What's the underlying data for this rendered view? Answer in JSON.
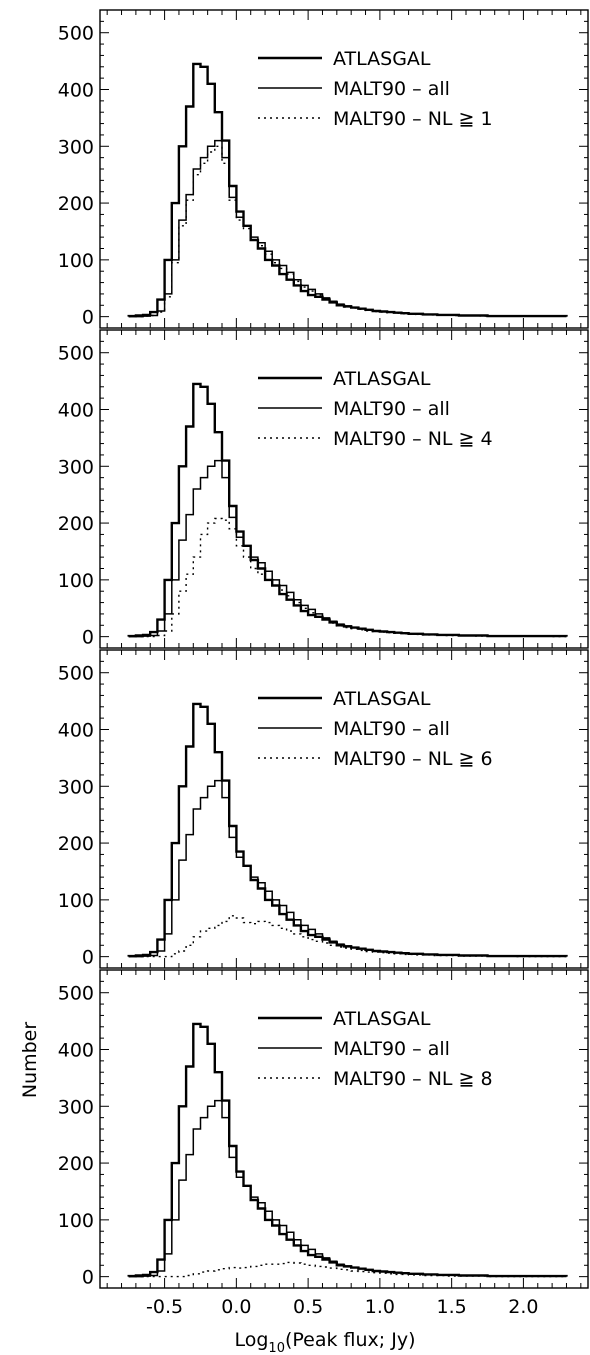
{
  "figure": {
    "xlabel_main": "Log",
    "xlabel_sub": "10",
    "xlabel_rest": "(Peak flux; Jy)",
    "ylabel": "Number"
  },
  "chart_data": [
    {
      "type": "histogram",
      "panel": 1,
      "xlim": [
        -0.95,
        2.45
      ],
      "ylim": [
        -20,
        540
      ],
      "xticks": [
        "-0.5",
        "0.0",
        "0.5",
        "1.0",
        "1.5",
        "2.0"
      ],
      "yticks": [
        "0",
        "100",
        "200",
        "300",
        "400",
        "500"
      ],
      "legend_position": "top-right",
      "series": [
        {
          "name": "ATLASGAL",
          "style": "thick-solid"
        },
        {
          "name": "MALT90 – all",
          "style": "thin-solid"
        },
        {
          "name": "MALT90 – NL ≧ 1",
          "style": "dotted"
        }
      ]
    },
    {
      "type": "histogram",
      "panel": 2,
      "xlim": [
        -0.95,
        2.45
      ],
      "ylim": [
        -20,
        540
      ],
      "xticks": [
        "-0.5",
        "0.0",
        "0.5",
        "1.0",
        "1.5",
        "2.0"
      ],
      "yticks": [
        "0",
        "100",
        "200",
        "300",
        "400",
        "500"
      ],
      "legend_position": "top-right",
      "series": [
        {
          "name": "ATLASGAL",
          "style": "thick-solid"
        },
        {
          "name": "MALT90 – all",
          "style": "thin-solid"
        },
        {
          "name": "MALT90 – NL ≧ 4",
          "style": "dotted"
        }
      ]
    },
    {
      "type": "histogram",
      "panel": 3,
      "xlim": [
        -0.95,
        2.45
      ],
      "ylim": [
        -20,
        540
      ],
      "xticks": [
        "-0.5",
        "0.0",
        "0.5",
        "1.0",
        "1.5",
        "2.0"
      ],
      "yticks": [
        "0",
        "100",
        "200",
        "300",
        "400",
        "500"
      ],
      "legend_position": "top-right",
      "series": [
        {
          "name": "ATLASGAL",
          "style": "thick-solid"
        },
        {
          "name": "MALT90 – all",
          "style": "thin-solid"
        },
        {
          "name": "MALT90 – NL ≧ 6",
          "style": "dotted"
        }
      ]
    },
    {
      "type": "histogram",
      "panel": 4,
      "xlim": [
        -0.95,
        2.45
      ],
      "ylim": [
        -20,
        540
      ],
      "xticks": [
        "-0.5",
        "0.0",
        "0.5",
        "1.0",
        "1.5",
        "2.0"
      ],
      "yticks": [
        "0",
        "100",
        "200",
        "300",
        "400",
        "500"
      ],
      "legend_position": "top-right",
      "series": [
        {
          "name": "ATLASGAL",
          "style": "thick-solid"
        },
        {
          "name": "MALT90 – all",
          "style": "thin-solid"
        },
        {
          "name": "MALT90 – NL ≧ 8",
          "style": "dotted"
        }
      ]
    }
  ],
  "histograms": {
    "bin_edges": [
      -0.75,
      -0.7,
      -0.65,
      -0.6,
      -0.55,
      -0.5,
      -0.45,
      -0.4,
      -0.35,
      -0.3,
      -0.25,
      -0.2,
      -0.15,
      -0.1,
      -0.05,
      0.0,
      0.05,
      0.1,
      0.15,
      0.2,
      0.25,
      0.3,
      0.35,
      0.4,
      0.45,
      0.5,
      0.55,
      0.6,
      0.65,
      0.7,
      0.75,
      0.8,
      0.85,
      0.9,
      0.95,
      1.0,
      1.05,
      1.1,
      1.15,
      1.2,
      1.25,
      1.3,
      1.35,
      1.4,
      1.45,
      1.5,
      1.55,
      1.6,
      1.65,
      1.7,
      1.75,
      1.8,
      1.85,
      1.9,
      1.95,
      2.0,
      2.05,
      2.1,
      2.15,
      2.2,
      2.25,
      2.3
    ],
    "atlasgal": [
      1,
      2,
      3,
      8,
      30,
      100,
      200,
      300,
      370,
      445,
      440,
      410,
      360,
      310,
      230,
      185,
      160,
      135,
      120,
      100,
      90,
      75,
      65,
      55,
      45,
      38,
      35,
      30,
      25,
      20,
      18,
      16,
      14,
      12,
      10,
      9,
      8,
      7,
      6,
      5,
      5,
      4,
      4,
      3,
      3,
      3,
      2,
      2,
      2,
      2,
      1,
      1,
      1,
      1,
      1,
      1,
      1,
      1,
      1,
      1,
      1
    ],
    "malt90_all": [
      0,
      0,
      1,
      2,
      10,
      40,
      100,
      170,
      215,
      260,
      280,
      300,
      310,
      280,
      210,
      175,
      160,
      140,
      130,
      115,
      100,
      90,
      78,
      65,
      55,
      48,
      40,
      33,
      27,
      22,
      19,
      16,
      14,
      12,
      10,
      9,
      8,
      7,
      6,
      5,
      5,
      4,
      4,
      3,
      3,
      3,
      2,
      2,
      2,
      2,
      1,
      1,
      1,
      1,
      1,
      1,
      1,
      1,
      1,
      1,
      1
    ],
    "nl_subsets": [
      [
        0,
        0,
        1,
        2,
        8,
        35,
        95,
        160,
        205,
        250,
        270,
        290,
        300,
        270,
        205,
        170,
        155,
        135,
        125,
        110,
        95,
        85,
        75,
        62,
        52,
        45,
        38,
        31,
        25,
        20,
        17,
        15,
        13,
        11,
        9,
        8,
        7,
        6,
        5,
        5,
        4,
        4,
        3,
        3,
        3,
        2,
        2,
        2,
        2,
        1,
        1,
        1,
        1,
        1,
        1,
        1,
        1,
        1,
        1,
        1,
        1
      ],
      [
        0,
        0,
        0,
        0,
        2,
        10,
        40,
        80,
        110,
        140,
        180,
        200,
        208,
        205,
        190,
        160,
        140,
        120,
        110,
        100,
        90,
        82,
        72,
        60,
        50,
        42,
        36,
        30,
        24,
        19,
        16,
        14,
        12,
        10,
        9,
        8,
        7,
        6,
        5,
        5,
        4,
        3,
        3,
        3,
        2,
        2,
        2,
        2,
        1,
        1,
        1,
        1,
        1,
        1,
        1,
        1,
        1,
        1,
        1,
        0,
        0
      ],
      [
        0,
        0,
        0,
        0,
        0,
        0,
        5,
        10,
        20,
        35,
        45,
        50,
        55,
        62,
        72,
        68,
        60,
        58,
        62,
        60,
        55,
        50,
        45,
        40,
        35,
        30,
        27,
        24,
        20,
        17,
        15,
        13,
        11,
        9,
        8,
        7,
        6,
        5,
        4,
        4,
        3,
        3,
        2,
        2,
        2,
        2,
        1,
        1,
        1,
        1,
        1,
        1,
        1,
        1,
        0,
        0,
        0,
        0,
        0,
        0,
        0
      ],
      [
        0,
        0,
        0,
        0,
        0,
        0,
        0,
        0,
        2,
        5,
        8,
        10,
        12,
        14,
        16,
        15,
        16,
        18,
        20,
        22,
        22,
        23,
        25,
        24,
        22,
        20,
        18,
        17,
        15,
        13,
        12,
        10,
        9,
        8,
        7,
        6,
        5,
        4,
        4,
        3,
        3,
        2,
        2,
        2,
        1,
        1,
        1,
        1,
        1,
        1,
        0,
        0,
        0,
        0,
        0,
        0,
        0,
        0,
        0,
        0,
        0
      ]
    ]
  }
}
